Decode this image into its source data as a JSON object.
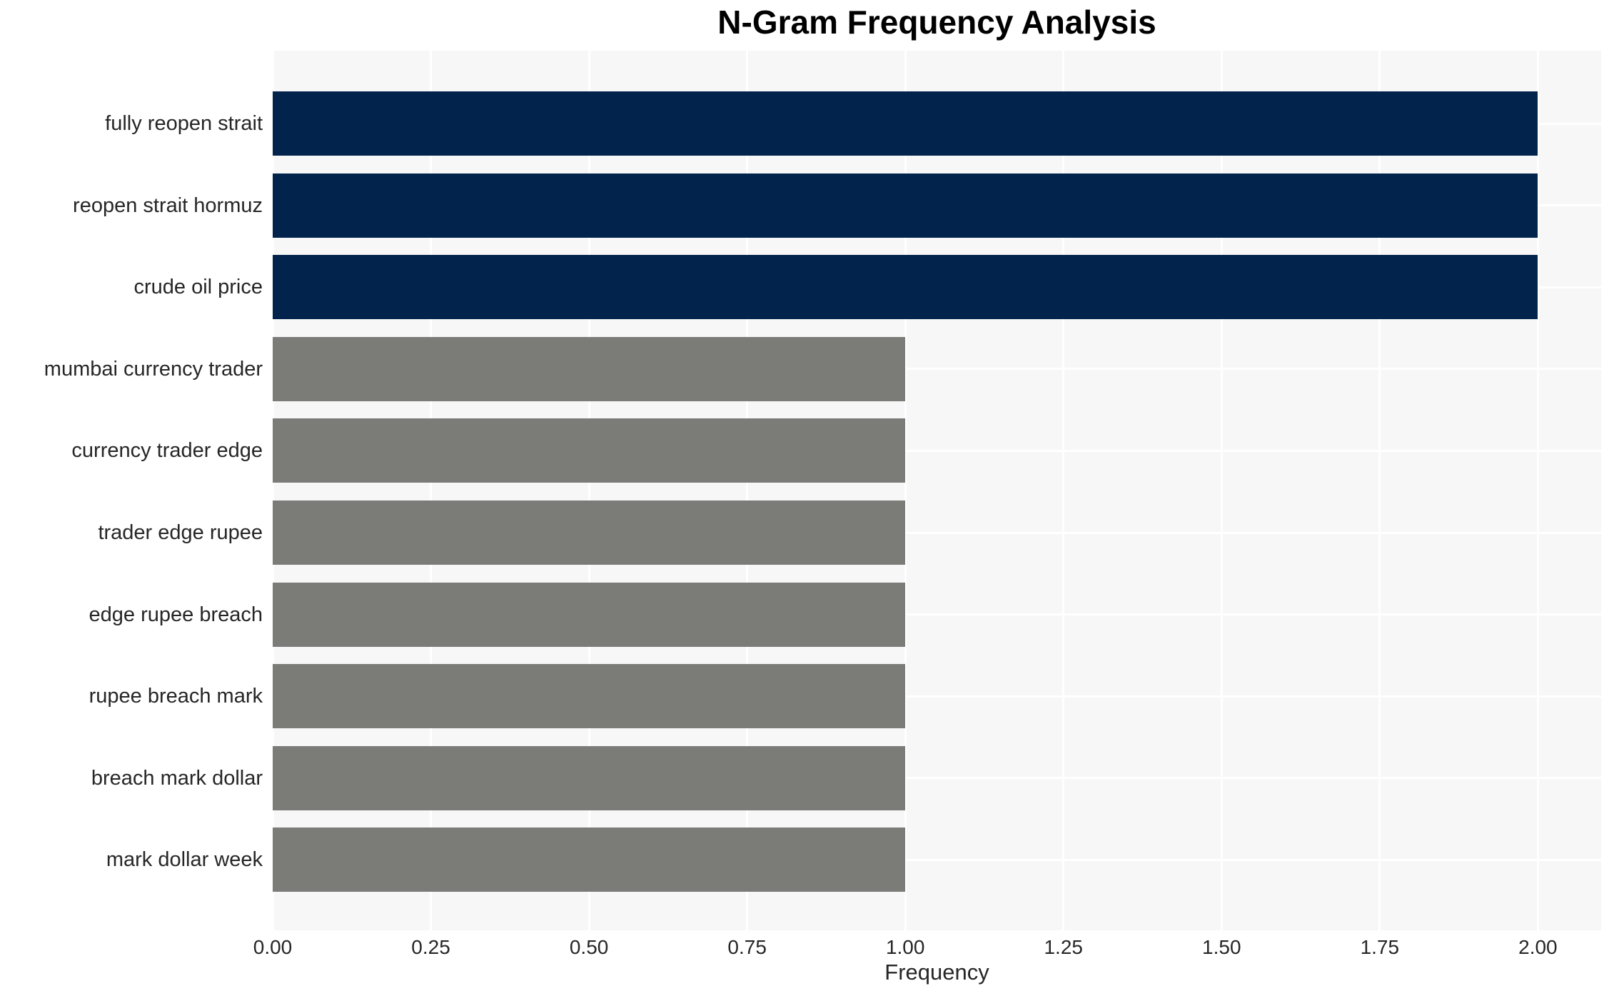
{
  "chart_data": {
    "type": "bar",
    "orientation": "horizontal",
    "title": "N-Gram Frequency Analysis",
    "xlabel": "Frequency",
    "ylabel": "",
    "categories": [
      "fully reopen strait",
      "reopen strait hormuz",
      "crude oil price",
      "mumbai currency trader",
      "currency trader edge",
      "trader edge rupee",
      "edge rupee breach",
      "rupee breach mark",
      "breach mark dollar",
      "mark dollar week"
    ],
    "values": [
      2,
      2,
      2,
      1,
      1,
      1,
      1,
      1,
      1,
      1
    ],
    "bar_colors": [
      "#02234c",
      "#02234c",
      "#02234c",
      "#7b7b78",
      "#7b7b78",
      "#7b7b78",
      "#7b7b78",
      "#7b7b78",
      "#7b7b78",
      "#7b7b78"
    ],
    "xticks": [
      "0.00",
      "0.25",
      "0.50",
      "0.75",
      "1.00",
      "1.25",
      "1.50",
      "1.75",
      "2.00"
    ],
    "xlim": [
      0,
      2.1
    ],
    "grid": true,
    "legend": "none",
    "colors": {
      "bar_high": "#02234c",
      "bar_low": "#7b7b78",
      "plot_background": "#f7f7f7",
      "gridline": "#ffffff",
      "title_text": "#000000",
      "tick_text": "#262626"
    }
  }
}
